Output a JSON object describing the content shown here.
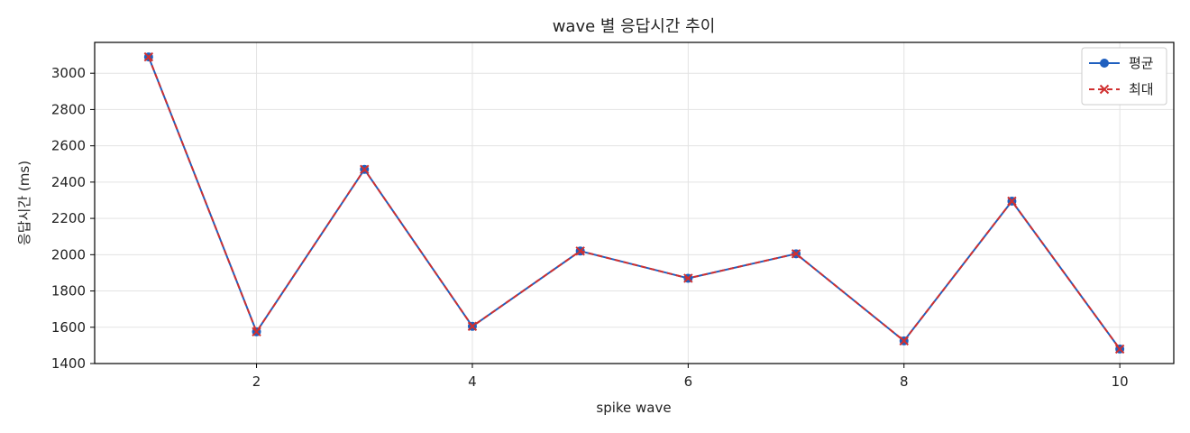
{
  "chart_data": {
    "type": "line",
    "title": "wave 별 응답시간 추이",
    "xlabel": "spike wave",
    "ylabel": "응답시간 (ms)",
    "xlim": [
      0.5,
      10.5
    ],
    "ylim": [
      1400,
      3170
    ],
    "xticks": [
      2,
      4,
      6,
      8,
      10
    ],
    "yticks": [
      1400,
      1600,
      1800,
      2000,
      2200,
      2400,
      2600,
      2800,
      3000
    ],
    "grid": true,
    "legend_position": "top-right",
    "x": [
      1,
      2,
      3,
      4,
      5,
      6,
      7,
      8,
      9,
      10
    ],
    "series": [
      {
        "name": "평균",
        "values": [
          3090,
          1575,
          2470,
          1605,
          2020,
          1870,
          2005,
          1525,
          2295,
          1480
        ],
        "color": "#1f5fbf",
        "line_style": "solid",
        "marker": "circle"
      },
      {
        "name": "최대",
        "values": [
          3090,
          1575,
          2470,
          1605,
          2020,
          1870,
          2005,
          1525,
          2295,
          1480
        ],
        "color": "#d03030",
        "line_style": "dashed",
        "marker": "x"
      }
    ]
  }
}
